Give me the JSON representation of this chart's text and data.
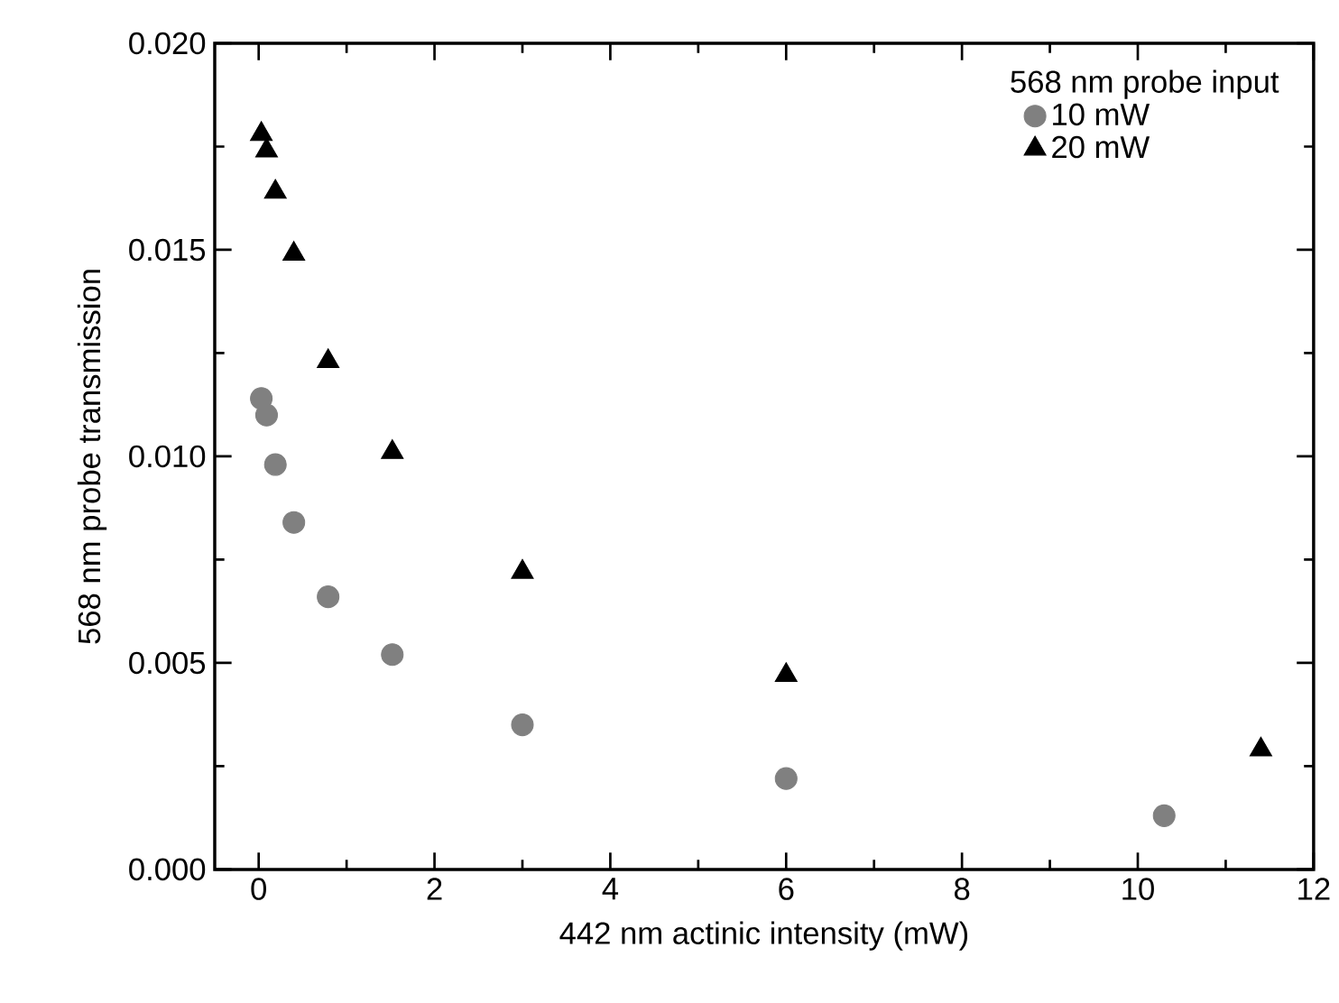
{
  "chart_data": {
    "type": "scatter",
    "xlabel": "442 nm actinic intensity (mW)",
    "ylabel": "568 nm probe transmission",
    "legend_title": "568 nm probe input",
    "legend": "top right",
    "grid": false,
    "xlim": [
      -0.5,
      12
    ],
    "xticks": [
      0,
      2,
      4,
      6,
      8,
      10,
      12
    ],
    "ylim": [
      0,
      0.02
    ],
    "yticks": [
      {
        "value": 0,
        "label": "0.000"
      },
      {
        "value": 0.005,
        "label": "0.005"
      },
      {
        "value": 0.01,
        "label": "0.010"
      },
      {
        "value": 0.015,
        "label": "0.015"
      },
      {
        "value": 0.02,
        "label": "0.020"
      }
    ],
    "series": [
      {
        "name": "10 mW",
        "color": "#808080",
        "marker": "circle",
        "x": [
          0.03,
          0.09,
          0.19,
          0.4,
          0.79,
          1.52,
          3.0,
          6.0,
          10.3
        ],
        "values": [
          0.0114,
          0.011,
          0.0098,
          0.0084,
          0.0066,
          0.0052,
          0.0035,
          0.0022,
          0.0013
        ]
      },
      {
        "name": "20 mW",
        "color": "#000000",
        "marker": "triangle",
        "x": [
          0.03,
          0.09,
          0.19,
          0.4,
          0.79,
          1.52,
          3.0,
          6.0,
          11.4
        ],
        "values": [
          0.0178,
          0.0174,
          0.0164,
          0.0149,
          0.0123,
          0.0101,
          0.0072,
          0.0047,
          0.0029
        ]
      }
    ]
  }
}
